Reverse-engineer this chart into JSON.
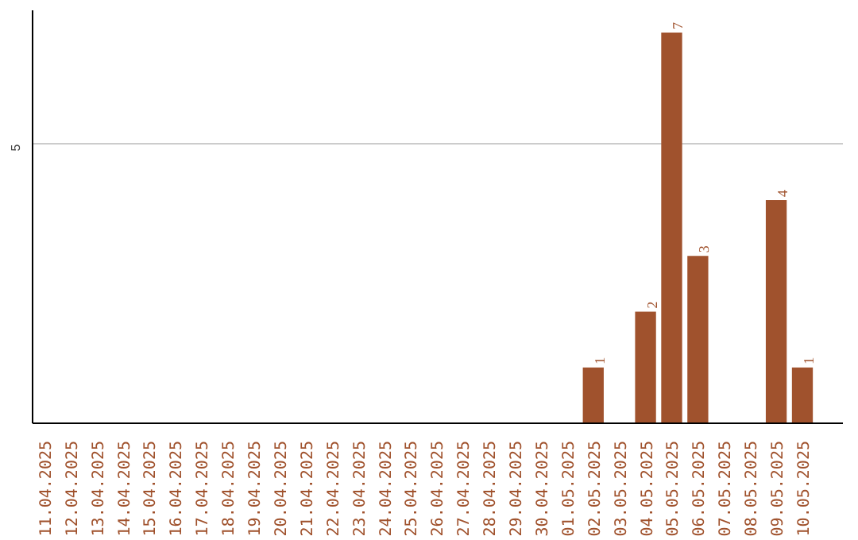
{
  "chart_data": {
    "type": "bar",
    "categories": [
      "11.04.2025",
      "12.04.2025",
      "13.04.2025",
      "14.04.2025",
      "15.04.2025",
      "16.04.2025",
      "17.04.2025",
      "18.04.2025",
      "19.04.2025",
      "20.04.2025",
      "21.04.2025",
      "22.04.2025",
      "23.04.2025",
      "24.04.2025",
      "25.04.2025",
      "26.04.2025",
      "27.04.2025",
      "28.04.2025",
      "29.04.2025",
      "30.04.2025",
      "01.05.2025",
      "02.05.2025",
      "03.05.2025",
      "04.05.2025",
      "05.05.2025",
      "06.05.2025",
      "07.05.2025",
      "08.05.2025",
      "09.05.2025",
      "10.05.2025"
    ],
    "values": [
      null,
      null,
      null,
      null,
      null,
      null,
      null,
      null,
      null,
      null,
      null,
      null,
      null,
      null,
      null,
      null,
      null,
      null,
      null,
      null,
      null,
      1,
      null,
      2,
      7,
      3,
      null,
      null,
      4,
      1
    ],
    "color": "#a0522d",
    "ylim": [
      0,
      7.4
    ],
    "yticks": [
      5
    ],
    "grid": "y",
    "data_labels": true
  }
}
